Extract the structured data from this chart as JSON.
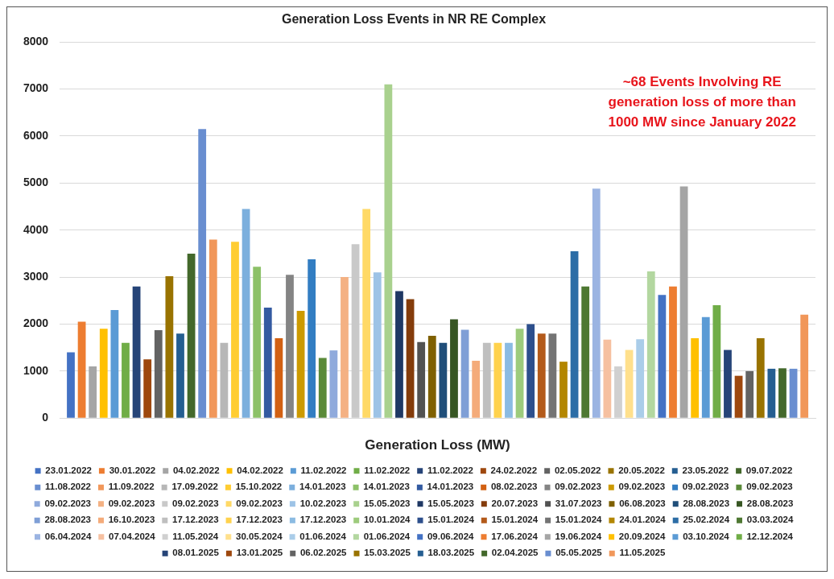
{
  "chart_data": {
    "type": "bar",
    "title": "Generation Loss Events in NR RE Complex",
    "xlabel": "Generation Loss (MW)",
    "annotations": [
      "~68 Events Involving RE generation loss of more than 1000 MW since January 2022"
    ],
    "categories": [
      null
    ],
    "ylim": [
      0,
      8000
    ],
    "yticks": [
      0,
      1000,
      2000,
      3000,
      4000,
      5000,
      6000,
      7000,
      8000
    ],
    "grid": "y",
    "legend": "bottom",
    "series": [
      {
        "name": "23.01.2022",
        "color": "#4472c4",
        "values": [
          1400
        ]
      },
      {
        "name": "30.01.2022",
        "color": "#ed7d31",
        "values": [
          2050
        ]
      },
      {
        "name": "04.02.2022",
        "color": "#a5a5a5",
        "values": [
          1100
        ]
      },
      {
        "name": "04.02.2022",
        "color": "#ffc000",
        "values": [
          1900
        ]
      },
      {
        "name": "11.02.2022",
        "color": "#5b9bd5",
        "values": [
          2300
        ]
      },
      {
        "name": "11.02.2022",
        "color": "#70ad47",
        "values": [
          1600
        ]
      },
      {
        "name": "11.02.2022",
        "color": "#264478",
        "values": [
          2800
        ]
      },
      {
        "name": "24.02.2022",
        "color": "#9e480e",
        "values": [
          1250
        ]
      },
      {
        "name": "02.05.2022",
        "color": "#636363",
        "values": [
          1870
        ]
      },
      {
        "name": "20.05.2022",
        "color": "#997300",
        "values": [
          3020
        ]
      },
      {
        "name": "23.05.2022",
        "color": "#255e91",
        "values": [
          1800
        ]
      },
      {
        "name": "09.07.2022",
        "color": "#43682b",
        "values": [
          3500
        ]
      },
      {
        "name": "11.08.2022",
        "color": "#698ed0",
        "values": [
          6150
        ]
      },
      {
        "name": "11.09.2022",
        "color": "#f1975a",
        "values": [
          3800
        ]
      },
      {
        "name": "17.09.2022",
        "color": "#b7b7b7",
        "values": [
          1600
        ]
      },
      {
        "name": "15.10.2022",
        "color": "#ffcd33",
        "values": [
          3750
        ]
      },
      {
        "name": "14.01.2023",
        "color": "#7cafdd",
        "values": [
          4450
        ]
      },
      {
        "name": "14.01.2023",
        "color": "#8cc168",
        "values": [
          3220
        ]
      },
      {
        "name": "14.01.2023",
        "color": "#335aa1",
        "values": [
          2350
        ]
      },
      {
        "name": "08.02.2023",
        "color": "#d26012",
        "values": [
          1700
        ]
      },
      {
        "name": "09.02.2023",
        "color": "#848484",
        "values": [
          3050
        ]
      },
      {
        "name": "09.02.2023",
        "color": "#cc9a00",
        "values": [
          2280
        ]
      },
      {
        "name": "09.02.2023",
        "color": "#327dc2",
        "values": [
          3380
        ]
      },
      {
        "name": "09.02.2023",
        "color": "#5a8a39",
        "values": [
          1280
        ]
      },
      {
        "name": "09.02.2023",
        "color": "#8faadc",
        "values": [
          1440
        ]
      },
      {
        "name": "09.02.2023",
        "color": "#f4b183",
        "values": [
          3000
        ]
      },
      {
        "name": "09.02.2023",
        "color": "#c9c9c9",
        "values": [
          3700
        ]
      },
      {
        "name": "09.02.2023",
        "color": "#ffd966",
        "values": [
          4450
        ]
      },
      {
        "name": "10.02.2023",
        "color": "#9dc3e6",
        "values": [
          3100
        ]
      },
      {
        "name": "15.05.2023",
        "color": "#a9d18e",
        "values": [
          7100
        ]
      },
      {
        "name": "15.05.2023",
        "color": "#1f3864",
        "values": [
          2700
        ]
      },
      {
        "name": "20.07.2023",
        "color": "#843c0b",
        "values": [
          2530
        ]
      },
      {
        "name": "31.07.2023",
        "color": "#525252",
        "values": [
          1620
        ]
      },
      {
        "name": "06.08.2023",
        "color": "#7f6000",
        "values": [
          1750
        ]
      },
      {
        "name": "28.08.2023",
        "color": "#1f4e79",
        "values": [
          1600
        ]
      },
      {
        "name": "28.08.2023",
        "color": "#375623",
        "values": [
          2100
        ]
      },
      {
        "name": "28.08.2023",
        "color": "#7f9fd6",
        "values": [
          1880
        ]
      },
      {
        "name": "16.10.2023",
        "color": "#f4ab7a",
        "values": [
          1220
        ]
      },
      {
        "name": "17.12.2023",
        "color": "#bfbfbf",
        "values": [
          1600
        ]
      },
      {
        "name": "17.12.2023",
        "color": "#ffd24d",
        "values": [
          1600
        ]
      },
      {
        "name": "17.12.2023",
        "color": "#8bbbe2",
        "values": [
          1600
        ]
      },
      {
        "name": "10.01.2024",
        "color": "#9dcb7c",
        "values": [
          1900
        ]
      },
      {
        "name": "15.01.2024",
        "color": "#2d4f8c",
        "values": [
          2000
        ]
      },
      {
        "name": "15.01.2024",
        "color": "#b35a1a",
        "values": [
          1800
        ]
      },
      {
        "name": "15.01.2024",
        "color": "#747474",
        "values": [
          1800
        ]
      },
      {
        "name": "24.01.2024",
        "color": "#b38600",
        "values": [
          1200
        ]
      },
      {
        "name": "25.02.2024",
        "color": "#2c6da6",
        "values": [
          3550
        ]
      },
      {
        "name": "03.03.2024",
        "color": "#4e7832",
        "values": [
          2800
        ]
      },
      {
        "name": "06.04.2024",
        "color": "#9bb4e2",
        "values": [
          4880
        ]
      },
      {
        "name": "07.04.2024",
        "color": "#f6c0a0",
        "values": [
          1670
        ]
      },
      {
        "name": "11.05.2024",
        "color": "#d0d0d0",
        "values": [
          1100
        ]
      },
      {
        "name": "30.05.2024",
        "color": "#ffe08c",
        "values": [
          1450
        ]
      },
      {
        "name": "01.06.2024",
        "color": "#aacde9",
        "values": [
          1680
        ]
      },
      {
        "name": "01.06.2024",
        "color": "#b3d7a0",
        "values": [
          3120
        ]
      },
      {
        "name": "09.06.2024",
        "color": "#4472c4",
        "values": [
          2620
        ]
      },
      {
        "name": "17.06.2024",
        "color": "#ed7d31",
        "values": [
          2800
        ]
      },
      {
        "name": "19.06.2024",
        "color": "#a5a5a5",
        "values": [
          4930
        ]
      },
      {
        "name": "20.09.2024",
        "color": "#ffc000",
        "values": [
          1700
        ]
      },
      {
        "name": "03.10.2024",
        "color": "#5b9bd5",
        "values": [
          2150
        ]
      },
      {
        "name": "12.12.2024",
        "color": "#70ad47",
        "values": [
          2400
        ]
      },
      {
        "name": "08.01.2025",
        "color": "#264478",
        "values": [
          1450
        ]
      },
      {
        "name": "13.01.2025",
        "color": "#9e480e",
        "values": [
          900
        ]
      },
      {
        "name": "06.02.2025",
        "color": "#636363",
        "values": [
          1000
        ]
      },
      {
        "name": "15.03.2025",
        "color": "#997300",
        "values": [
          1700
        ]
      },
      {
        "name": "18.03.2025",
        "color": "#255e91",
        "values": [
          1050
        ]
      },
      {
        "name": "02.04.2025",
        "color": "#43682b",
        "values": [
          1060
        ]
      },
      {
        "name": "05.05.2025",
        "color": "#698ed0",
        "values": [
          1050
        ]
      },
      {
        "name": "11.05.2025",
        "color": "#f1975a",
        "values": [
          2200
        ]
      }
    ]
  }
}
